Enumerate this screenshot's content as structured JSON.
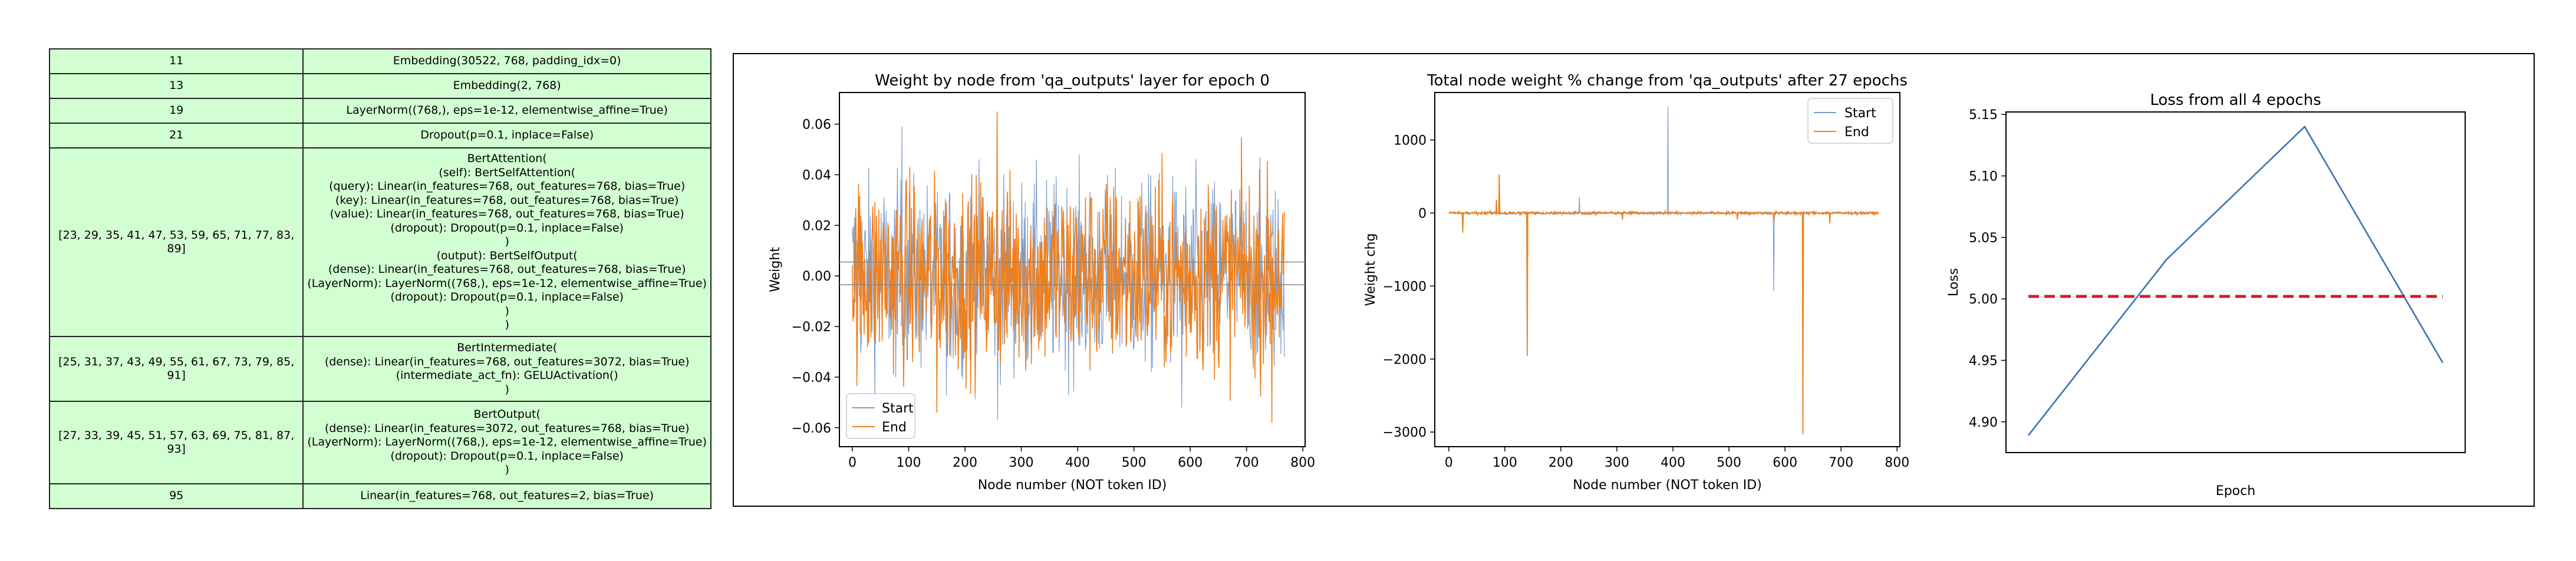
{
  "table": {
    "rows": [
      {
        "ids": "11",
        "lines": [
          "Embedding(30522, 768, padding_idx=0)"
        ]
      },
      {
        "ids": "13",
        "lines": [
          "Embedding(2, 768)"
        ]
      },
      {
        "ids": "19",
        "lines": [
          "LayerNorm((768,), eps=1e-12, elementwise_affine=True)"
        ]
      },
      {
        "ids": "21",
        "lines": [
          "Dropout(p=0.1, inplace=False)"
        ]
      },
      {
        "ids": "[23, 29, 35, 41, 47, 53, 59, 65, 71, 77, 83, 89]",
        "lines": [
          "BertAttention(",
          "(self): BertSelfAttention(",
          "(query): Linear(in_features=768, out_features=768, bias=True)",
          "(key): Linear(in_features=768, out_features=768, bias=True)",
          "(value): Linear(in_features=768, out_features=768, bias=True)",
          "(dropout): Dropout(p=0.1, inplace=False)",
          ")",
          "(output): BertSelfOutput(",
          "(dense): Linear(in_features=768, out_features=768, bias=True)",
          "(LayerNorm): LayerNorm((768,), eps=1e-12, elementwise_affine=True)",
          "(dropout): Dropout(p=0.1, inplace=False)",
          ")",
          ")"
        ]
      },
      {
        "ids": "[25, 31, 37, 43, 49, 55, 61, 67, 73, 79, 85, 91]",
        "lines": [
          "BertIntermediate(",
          "(dense): Linear(in_features=768, out_features=3072, bias=True)",
          "(intermediate_act_fn): GELUActivation()",
          ")"
        ]
      },
      {
        "ids": "[27, 33, 39, 45, 51, 57, 63, 69, 75, 81, 87, 93]",
        "lines": [
          "BertOutput(",
          "(dense): Linear(in_features=3072, out_features=768, bias=True)",
          "(LayerNorm): LayerNorm((768,), eps=1e-12, elementwise_affine=True)",
          "(dropout): Dropout(p=0.1, inplace=False)",
          ")"
        ]
      },
      {
        "ids": "95",
        "lines": [
          "Linear(in_features=768, out_features=2, bias=True)"
        ]
      }
    ]
  },
  "colors": {
    "start": "#7b9ccc",
    "end": "#f07f1b",
    "loss": "#3a73b2",
    "threshold": "#cc2020",
    "table_bg": "#d2ffd2"
  },
  "chart_data": [
    {
      "type": "line",
      "title": "Weight by node from 'qa_outputs' layer for epoch 0",
      "xlabel": "Node number (NOT token ID)",
      "ylabel": "Weight",
      "xlim": [
        -23,
        804
      ],
      "ylim": [
        -0.0675,
        0.0725
      ],
      "xticks": [
        "0",
        "100",
        "200",
        "300",
        "400",
        "500",
        "600",
        "700",
        "800"
      ],
      "xtick_values": [
        0,
        100,
        200,
        300,
        400,
        500,
        600,
        700,
        800
      ],
      "yticks": [
        "−0.06",
        "−0.04",
        "−0.02",
        "0.00",
        "0.02",
        "0.04",
        "0.06"
      ],
      "ytick_values": [
        -0.06,
        -0.04,
        -0.02,
        0,
        0.02,
        0.04,
        0.06
      ],
      "hlines": [
        0.0055,
        -0.0035
      ],
      "legend": "lower-left",
      "series": [
        {
          "name": "Start",
          "n": 768,
          "range": [
            -0.057,
            0.059
          ],
          "note_peaks": [
            [
              88,
              0.059
            ],
            [
              258,
              -0.057
            ],
            [
              585,
              -0.052
            ]
          ]
        },
        {
          "name": "End",
          "n": 768,
          "range": [
            -0.058,
            0.065
          ],
          "note_peaks": [
            [
              257,
              0.065
            ],
            [
              150,
              -0.054
            ],
            [
              745,
              -0.058
            ]
          ]
        }
      ]
    },
    {
      "type": "line",
      "title": "Total node weight % change from 'qa_outputs' after 27 epochs",
      "xlabel": "Node number (NOT token ID)",
      "ylabel": "Weight chg",
      "xlim": [
        -25,
        805
      ],
      "ylim": [
        -3200,
        1650
      ],
      "xticks": [
        "0",
        "100",
        "200",
        "300",
        "400",
        "500",
        "600",
        "700",
        "800"
      ],
      "xtick_values": [
        0,
        100,
        200,
        300,
        400,
        500,
        600,
        700,
        800
      ],
      "yticks": [
        "−3000",
        "−2000",
        "−1000",
        "0",
        "1000"
      ],
      "ytick_values": [
        -3000,
        -2000,
        -1000,
        0,
        1000
      ],
      "legend": "top-right",
      "series": [
        {
          "name": "Start",
          "spikes": [
            [
              140,
              -1960
            ],
            [
              233,
              220
            ],
            [
              391,
              1460
            ],
            [
              580,
              -1070
            ],
            [
              632,
              -2990
            ]
          ]
        },
        {
          "name": "End",
          "spikes": [
            [
              25,
              -270
            ],
            [
              85,
              180
            ],
            [
              90,
              530
            ],
            [
              140,
              -1960
            ],
            [
              310,
              -90
            ],
            [
              515,
              -90
            ],
            [
              580,
              -110
            ],
            [
              632,
              -3030
            ],
            [
              680,
              -140
            ]
          ]
        }
      ]
    },
    {
      "type": "line",
      "title": "Loss from all 4 epochs",
      "xlabel": "Epoch",
      "ylabel": "Loss",
      "x": [
        0,
        1,
        2,
        3
      ],
      "ylim": [
        4.875,
        5.152
      ],
      "yticks": [
        "4.90",
        "4.95",
        "5.00",
        "5.05",
        "5.10",
        "5.15"
      ],
      "ytick_values": [
        4.9,
        4.95,
        5.0,
        5.05,
        5.1,
        5.15
      ],
      "series": [
        {
          "values": [
            4.889,
            5.032,
            5.14,
            4.948
          ]
        }
      ],
      "threshold": 5.002
    }
  ]
}
